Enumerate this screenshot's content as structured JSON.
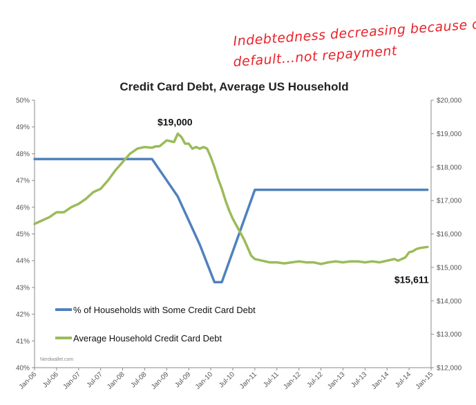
{
  "handwritten_note": {
    "line1": "Indebtedness decreasing because of",
    "line2": "default...not repayment"
  },
  "watermark": "Nerdwallet.com",
  "chart_data": {
    "type": "line",
    "title": "Credit Card Debt, Average US Household",
    "xlabel": "",
    "ylabel": "",
    "y2label": "",
    "x_tick_labels": [
      "Jan-06",
      "Jul-06",
      "Jan-07",
      "Jul-07",
      "Jan-08",
      "Jul-08",
      "Jan-09",
      "Jul-09",
      "Jan-10",
      "Jul-10",
      "Jan-11",
      "Jul-11",
      "Jan-12",
      "Jul-12",
      "Jan-13",
      "Jul-13",
      "Jan-14",
      "Jul-14",
      "Jan-15"
    ],
    "xlim": [
      "2006-01",
      "2015-01"
    ],
    "ylim_left": [
      40,
      50
    ],
    "ylim_right": [
      12000,
      20000
    ],
    "y_left_ticks": [
      "40%",
      "41%",
      "42%",
      "43%",
      "44%",
      "45%",
      "46%",
      "47%",
      "48%",
      "49%",
      "50%"
    ],
    "y_right_ticks": [
      "$12,000",
      "$13,000",
      "$14,000",
      "$15,000",
      "$16,000",
      "$17,000",
      "$18,000",
      "$19,000",
      "$20,000"
    ],
    "grid": false,
    "legend_position": "bottom-left",
    "series": [
      {
        "name": "% of Households with Some Credit Card Debt",
        "axis": "left",
        "color": "#4f81bd",
        "points": [
          [
            "2006-01",
            47.8
          ],
          [
            "2008-09",
            47.8
          ],
          [
            "2009-04",
            46.4
          ],
          [
            "2009-10",
            44.6
          ],
          [
            "2010-02",
            43.2
          ],
          [
            "2010-04",
            43.2
          ],
          [
            "2011-01",
            46.65
          ],
          [
            "2014-12",
            46.65
          ]
        ]
      },
      {
        "name": "Average Household Credit Card Debt",
        "axis": "right",
        "color": "#9bbb59",
        "points": [
          [
            "2006-01",
            16300
          ],
          [
            "2006-03",
            16400
          ],
          [
            "2006-05",
            16500
          ],
          [
            "2006-07",
            16650
          ],
          [
            "2006-09",
            16650
          ],
          [
            "2006-11",
            16800
          ],
          [
            "2007-01",
            16900
          ],
          [
            "2007-03",
            17050
          ],
          [
            "2007-05",
            17250
          ],
          [
            "2007-07",
            17350
          ],
          [
            "2007-09",
            17600
          ],
          [
            "2007-11",
            17900
          ],
          [
            "2008-01",
            18150
          ],
          [
            "2008-03",
            18400
          ],
          [
            "2008-05",
            18550
          ],
          [
            "2008-07",
            18600
          ],
          [
            "2008-09",
            18580
          ],
          [
            "2008-10",
            18620
          ],
          [
            "2008-11",
            18620
          ],
          [
            "2009-01",
            18800
          ],
          [
            "2009-03",
            18750
          ],
          [
            "2009-04",
            19000
          ],
          [
            "2009-05",
            18900
          ],
          [
            "2009-06",
            18700
          ],
          [
            "2009-07",
            18700
          ],
          [
            "2009-08",
            18550
          ],
          [
            "2009-09",
            18600
          ],
          [
            "2009-10",
            18550
          ],
          [
            "2009-11",
            18600
          ],
          [
            "2009-12",
            18550
          ],
          [
            "2010-01",
            18300
          ],
          [
            "2010-02",
            18000
          ],
          [
            "2010-03",
            17650
          ],
          [
            "2010-04",
            17350
          ],
          [
            "2010-05",
            17000
          ],
          [
            "2010-06",
            16700
          ],
          [
            "2010-07",
            16450
          ],
          [
            "2010-08",
            16250
          ],
          [
            "2010-09",
            16050
          ],
          [
            "2010-10",
            15850
          ],
          [
            "2010-11",
            15600
          ],
          [
            "2010-12",
            15350
          ],
          [
            "2011-01",
            15250
          ],
          [
            "2011-03",
            15200
          ],
          [
            "2011-05",
            15150
          ],
          [
            "2011-07",
            15150
          ],
          [
            "2011-09",
            15120
          ],
          [
            "2011-11",
            15150
          ],
          [
            "2012-01",
            15180
          ],
          [
            "2012-03",
            15150
          ],
          [
            "2012-05",
            15150
          ],
          [
            "2012-07",
            15100
          ],
          [
            "2012-09",
            15150
          ],
          [
            "2012-11",
            15180
          ],
          [
            "2013-01",
            15150
          ],
          [
            "2013-03",
            15180
          ],
          [
            "2013-05",
            15180
          ],
          [
            "2013-07",
            15150
          ],
          [
            "2013-09",
            15180
          ],
          [
            "2013-11",
            15150
          ],
          [
            "2014-01",
            15200
          ],
          [
            "2014-03",
            15250
          ],
          [
            "2014-04",
            15200
          ],
          [
            "2014-05",
            15250
          ],
          [
            "2014-06",
            15300
          ],
          [
            "2014-07",
            15450
          ],
          [
            "2014-08",
            15480
          ],
          [
            "2014-09",
            15550
          ],
          [
            "2014-10",
            15580
          ],
          [
            "2014-12",
            15611
          ]
        ]
      }
    ],
    "annotations": [
      {
        "text": "$19,000",
        "series": 1,
        "at": [
          "2009-04",
          19000
        ]
      },
      {
        "text": "$15,611",
        "series": 1,
        "at": [
          "2014-12",
          15611
        ]
      }
    ]
  }
}
